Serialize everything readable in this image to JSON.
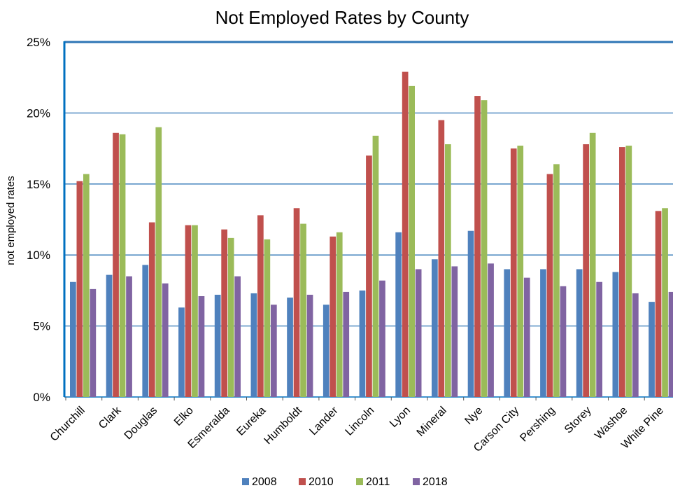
{
  "chart_data": {
    "type": "bar",
    "title": "Not Employed Rates by County",
    "ylabel": "not employed rates",
    "xlabel": "",
    "ylim": [
      0,
      25
    ],
    "yticks": [
      "0%",
      "5%",
      "10%",
      "15%",
      "20%",
      "25%"
    ],
    "grid": true,
    "legend_position": "bottom",
    "categories": [
      "Churchill",
      "Clark",
      "Douglas",
      "Elko",
      "Esmeralda",
      "Eureka",
      "Humboldt",
      "Lander",
      "Lincoln",
      "Lyon",
      "Mineral",
      "Nye",
      "Carson City",
      "Pershing",
      "Storey",
      "Washoe",
      "White Pine"
    ],
    "series": [
      {
        "name": "2008",
        "color": "#4F81BD",
        "values": [
          8.1,
          8.6,
          9.3,
          6.3,
          7.2,
          7.3,
          7.0,
          6.5,
          7.5,
          11.6,
          9.7,
          11.7,
          9.0,
          9.0,
          9.0,
          8.8,
          6.7
        ]
      },
      {
        "name": "2010",
        "color": "#C0504D",
        "values": [
          15.2,
          18.6,
          12.3,
          12.1,
          11.8,
          12.8,
          13.3,
          11.3,
          17.0,
          22.9,
          19.5,
          21.2,
          17.5,
          15.7,
          17.8,
          17.6,
          13.1
        ]
      },
      {
        "name": "2011",
        "color": "#9BBB59",
        "values": [
          15.7,
          18.5,
          19.0,
          12.1,
          11.2,
          11.1,
          12.2,
          11.6,
          18.4,
          21.9,
          17.8,
          20.9,
          17.7,
          16.4,
          18.6,
          17.7,
          13.3
        ]
      },
      {
        "name": "2018",
        "color": "#8064A2",
        "values": [
          7.6,
          8.5,
          8.0,
          7.1,
          8.5,
          6.5,
          7.2,
          7.4,
          8.2,
          9.0,
          9.2,
          9.4,
          8.4,
          7.8,
          8.1,
          7.3,
          7.4
        ]
      }
    ],
    "gridline_color": "#2E75B6",
    "axis_color": "#0070C0"
  }
}
